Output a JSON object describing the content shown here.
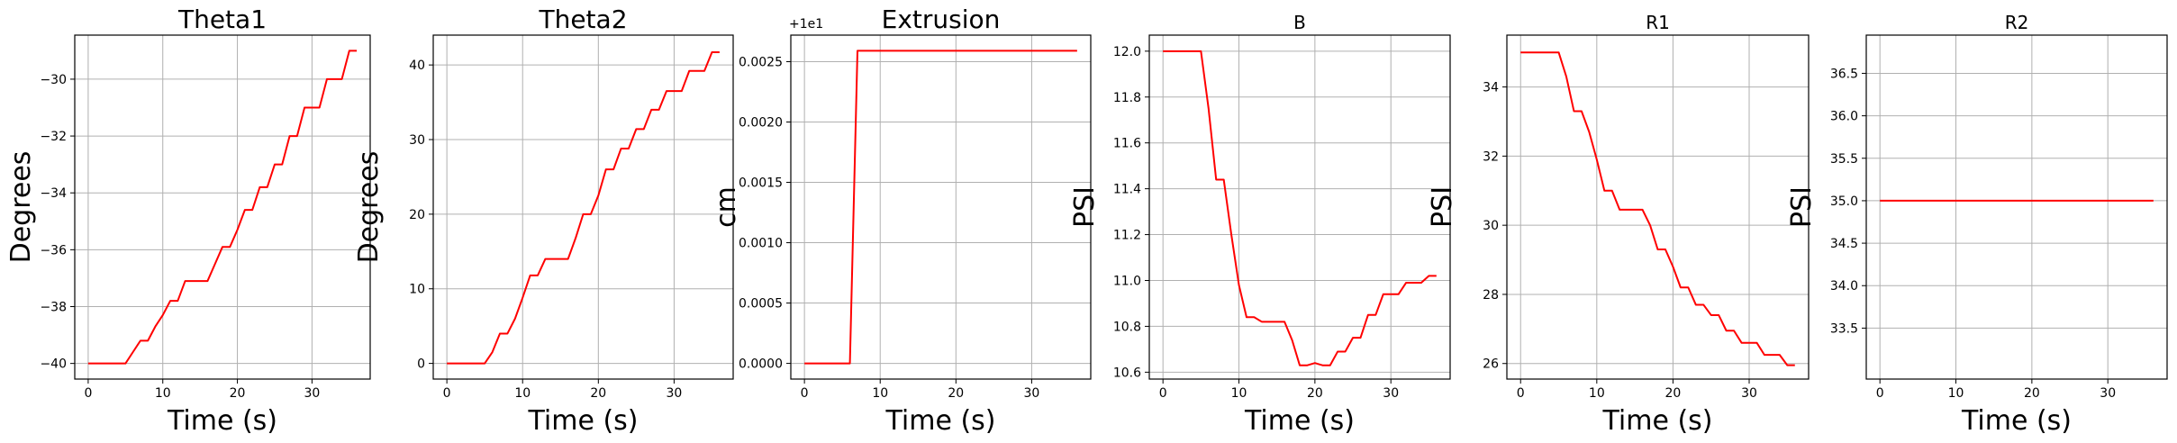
{
  "figure": {
    "line_color": "#ff0000",
    "grid_color": "#b0b0b0",
    "grid": true
  },
  "chart_data": [
    {
      "type": "line",
      "title": "Theta1",
      "xlabel": "Time (s)",
      "ylabel": "Degrees",
      "xlim": [
        -1.8,
        37.8
      ],
      "ylim": [
        -40.55,
        -28.45
      ],
      "xticks": [
        0,
        10,
        20,
        30
      ],
      "yticks": [
        -40,
        -38,
        -36,
        -34,
        -32,
        -30
      ],
      "ytick_labels": [
        "−40",
        "−38",
        "−36",
        "−34",
        "−32",
        "−30"
      ],
      "offset_text": "",
      "x": [
        0,
        1,
        2,
        3,
        4,
        5,
        6,
        7,
        8,
        9,
        10,
        11,
        12,
        13,
        14,
        15,
        16,
        17,
        18,
        19,
        20,
        21,
        22,
        23,
        24,
        25,
        26,
        27,
        28,
        29,
        30,
        31,
        32,
        33,
        34,
        35,
        36
      ],
      "y": [
        -40,
        -40,
        -40,
        -40,
        -40,
        -40,
        -39.6,
        -39.2,
        -39.2,
        -38.7,
        -38.3,
        -37.8,
        -37.8,
        -37.1,
        -37.1,
        -37.1,
        -37.1,
        -36.5,
        -35.9,
        -35.9,
        -35.3,
        -34.6,
        -34.6,
        -33.8,
        -33.8,
        -33.0,
        -33.0,
        -32.0,
        -32.0,
        -31.0,
        -31.0,
        -31.0,
        -30.0,
        -30.0,
        -30.0,
        -29.0,
        -29.0
      ]
    },
    {
      "type": "line",
      "title": "Theta2",
      "xlabel": "Time (s)",
      "ylabel": "Degrees",
      "xlim": [
        -1.8,
        37.8
      ],
      "ylim": [
        -2.1,
        44.0
      ],
      "xticks": [
        0,
        10,
        20,
        30
      ],
      "yticks": [
        0,
        10,
        20,
        30,
        40
      ],
      "ytick_labels": [
        "0",
        "10",
        "20",
        "30",
        "40"
      ],
      "offset_text": "",
      "x": [
        0,
        1,
        2,
        3,
        4,
        5,
        6,
        7,
        8,
        9,
        10,
        11,
        12,
        13,
        14,
        15,
        16,
        17,
        18,
        19,
        20,
        21,
        22,
        23,
        24,
        25,
        26,
        27,
        28,
        29,
        30,
        31,
        32,
        33,
        34,
        35,
        36
      ],
      "y": [
        0,
        0,
        0,
        0,
        0,
        0,
        1.5,
        4.0,
        4.0,
        6.0,
        8.8,
        11.8,
        11.8,
        14.0,
        14.0,
        14.0,
        14.0,
        16.8,
        20.0,
        20.0,
        22.5,
        26.0,
        26.0,
        28.8,
        28.8,
        31.4,
        31.4,
        34.0,
        34.0,
        36.5,
        36.5,
        36.5,
        39.2,
        39.2,
        39.2,
        41.7,
        41.7
      ]
    },
    {
      "type": "line",
      "title": "Extrusion",
      "xlabel": "Time (s)",
      "ylabel": "cm",
      "xlim": [
        -1.8,
        37.8
      ],
      "ylim": [
        -0.00013,
        0.00272
      ],
      "xticks": [
        0,
        10,
        20,
        30
      ],
      "yticks": [
        0,
        0.0005,
        0.001,
        0.0015,
        0.002,
        0.0025
      ],
      "ytick_labels": [
        "0.0000",
        "0.0005",
        "0.0010",
        "0.0015",
        "0.0020",
        "0.0025"
      ],
      "offset_text": "+1e1",
      "x": [
        0,
        6,
        7,
        36
      ],
      "y": [
        0,
        0,
        0.00259,
        0.00259
      ]
    },
    {
      "type": "line",
      "title": "B",
      "xlabel": "Time (s)",
      "ylabel": "PSI",
      "xlim": [
        -1.8,
        37.8
      ],
      "ylim": [
        10.57,
        12.07
      ],
      "xticks": [
        0,
        10,
        20,
        30
      ],
      "yticks": [
        10.6,
        10.8,
        11.0,
        11.2,
        11.4,
        11.6,
        11.8,
        12.0
      ],
      "ytick_labels": [
        "10.6",
        "10.8",
        "11.0",
        "11.2",
        "11.4",
        "11.6",
        "11.8",
        "12.0"
      ],
      "offset_text": "",
      "x": [
        0,
        1,
        2,
        3,
        4,
        5,
        6,
        7,
        8,
        9,
        10,
        11,
        12,
        13,
        14,
        15,
        16,
        17,
        18,
        19,
        20,
        21,
        22,
        23,
        24,
        25,
        26,
        27,
        28,
        29,
        30,
        31,
        32,
        33,
        34,
        35,
        36
      ],
      "y": [
        12.0,
        12.0,
        12.0,
        12.0,
        12.0,
        12.0,
        11.75,
        11.44,
        11.44,
        11.2,
        10.98,
        10.84,
        10.84,
        10.82,
        10.82,
        10.82,
        10.82,
        10.74,
        10.63,
        10.63,
        10.64,
        10.63,
        10.63,
        10.69,
        10.69,
        10.75,
        10.75,
        10.85,
        10.85,
        10.94,
        10.94,
        10.94,
        10.99,
        10.99,
        10.99,
        11.02,
        11.02
      ]
    },
    {
      "type": "line",
      "title": "R1",
      "xlabel": "Time (s)",
      "ylabel": "PSI",
      "xlim": [
        -1.8,
        37.8
      ],
      "ylim": [
        25.55,
        35.5
      ],
      "xticks": [
        0,
        10,
        20,
        30
      ],
      "yticks": [
        26,
        28,
        30,
        32,
        34
      ],
      "ytick_labels": [
        "26",
        "28",
        "30",
        "32",
        "34"
      ],
      "offset_text": "",
      "x": [
        0,
        1,
        2,
        3,
        4,
        5,
        6,
        7,
        8,
        9,
        10,
        11,
        12,
        13,
        14,
        15,
        16,
        17,
        18,
        19,
        20,
        21,
        22,
        23,
        24,
        25,
        26,
        27,
        28,
        29,
        30,
        31,
        32,
        33,
        34,
        35,
        36
      ],
      "y": [
        35.0,
        35.0,
        35.0,
        35.0,
        35.0,
        35.0,
        34.3,
        33.3,
        33.3,
        32.7,
        31.9,
        31.0,
        31.0,
        30.45,
        30.45,
        30.45,
        30.45,
        30.0,
        29.3,
        29.3,
        28.8,
        28.2,
        28.2,
        27.7,
        27.7,
        27.4,
        27.4,
        26.95,
        26.95,
        26.6,
        26.6,
        26.6,
        26.25,
        26.25,
        26.25,
        25.95,
        25.95
      ]
    },
    {
      "type": "line",
      "title": "R2",
      "xlabel": "Time (s)",
      "ylabel": "PSI",
      "xlim": [
        -1.8,
        37.8
      ],
      "ylim": [
        32.9,
        36.95
      ],
      "xticks": [
        0,
        10,
        20,
        30
      ],
      "yticks": [
        33.5,
        34.0,
        34.5,
        35.0,
        35.5,
        36.0,
        36.5
      ],
      "ytick_labels": [
        "33.5",
        "34.0",
        "34.5",
        "35.0",
        "35.5",
        "36.0",
        "36.5"
      ],
      "offset_text": "",
      "x": [
        0,
        36
      ],
      "y": [
        35.0,
        35.0
      ]
    }
  ]
}
